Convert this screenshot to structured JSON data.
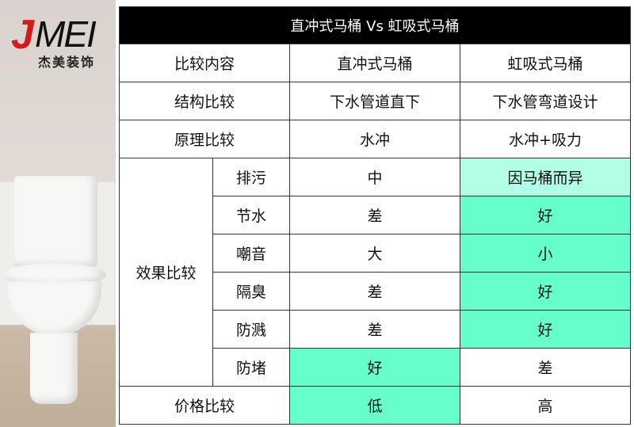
{
  "logo": {
    "latin": "JMEI",
    "j": "J",
    "mei": "MEI",
    "chinese": "杰美装饰"
  },
  "colors": {
    "header_bg": "#000000",
    "highlight_light": "#b3ffe6",
    "highlight_strong": "#66ffcc"
  },
  "table": {
    "title": "直冲式马桶  Vs  虹吸式马桶",
    "header": [
      "比较内容",
      "直冲式马桶",
      "虹吸式马桶"
    ],
    "rows": [
      {
        "label": "结构比较",
        "a": "下水管道直下",
        "b": "下水管弯道设计"
      },
      {
        "label": "原理比较",
        "a": "水冲",
        "b": "水冲+吸力"
      }
    ],
    "effect_group": "效果比较",
    "effects": [
      {
        "label": "排污",
        "a": "中",
        "b": "因马桶而异",
        "hl": "b-light"
      },
      {
        "label": "节水",
        "a": "差",
        "b": "好",
        "hl": "b"
      },
      {
        "label": "嘲音",
        "a": "大",
        "b": "小",
        "hl": "b"
      },
      {
        "label": "隔臭",
        "a": "差",
        "b": "好",
        "hl": "b"
      },
      {
        "label": "防溅",
        "a": "差",
        "b": "好",
        "hl": "b"
      },
      {
        "label": "防堵",
        "a": "好",
        "b": "差",
        "hl": "a"
      }
    ],
    "price": {
      "label": "价格比较",
      "a": "低",
      "b": "高",
      "hl": "a"
    }
  }
}
